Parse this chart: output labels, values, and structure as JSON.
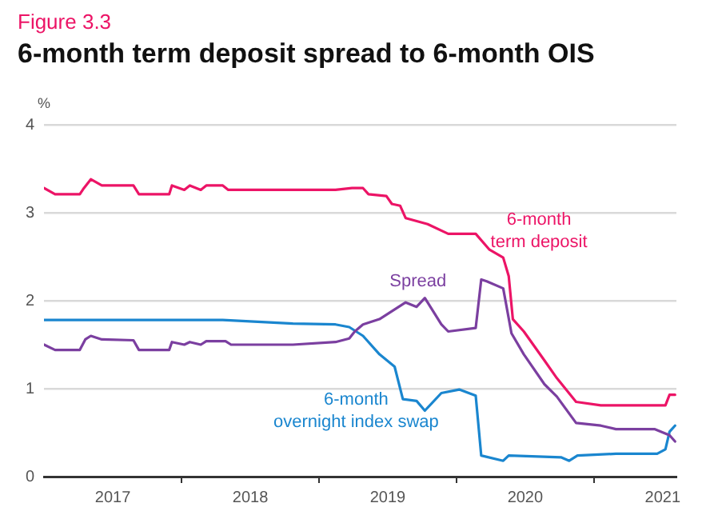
{
  "chart_data": {
    "type": "line",
    "subtitle": "Figure 3.3",
    "title": "6-month term deposit spread to 6-month OIS",
    "ylabel": "%",
    "xlim": [
      2017,
      2021.6
    ],
    "xticks": [
      {
        "value": 2017.5,
        "label": "2017"
      },
      {
        "value": 2018,
        "label": null
      },
      {
        "value": 2018.5,
        "label": "2018"
      },
      {
        "value": 2019,
        "label": null
      },
      {
        "value": 2019.5,
        "label": "2019"
      },
      {
        "value": 2020,
        "label": null
      },
      {
        "value": 2020.5,
        "label": "2020"
      },
      {
        "value": 2021,
        "label": null
      },
      {
        "value": 2021.5,
        "label": "2021"
      }
    ],
    "ylim": [
      0,
      4
    ],
    "yticks": [
      0,
      1,
      2,
      3,
      4
    ],
    "grid": "y",
    "legend": false,
    "marker": "none",
    "line_style": "solid",
    "series": [
      {
        "name": "6-month term deposit",
        "color": "#ec1466",
        "x": [
          2017.0,
          2017.08,
          2017.26,
          2017.29,
          2017.34,
          2017.42,
          2017.65,
          2017.69,
          2017.91,
          2017.93,
          2018.02,
          2018.06,
          2018.14,
          2018.18,
          2018.3,
          2018.34,
          2019.12,
          2019.24,
          2019.32,
          2019.36,
          2019.49,
          2019.53,
          2019.59,
          2019.63,
          2019.79,
          2019.94,
          2020.14,
          2020.24,
          2020.34,
          2020.38,
          2020.41,
          2020.49,
          2020.64,
          2020.73,
          2020.87,
          2021.05,
          2021.52,
          2021.55,
          2021.59
        ],
        "values": [
          3.28,
          3.21,
          3.21,
          3.28,
          3.38,
          3.31,
          3.31,
          3.21,
          3.21,
          3.31,
          3.26,
          3.31,
          3.26,
          3.31,
          3.31,
          3.26,
          3.26,
          3.28,
          3.28,
          3.21,
          3.19,
          3.1,
          3.08,
          2.94,
          2.87,
          2.76,
          2.76,
          2.58,
          2.49,
          2.28,
          1.79,
          1.65,
          1.32,
          1.12,
          0.85,
          0.81,
          0.81,
          0.93,
          0.93
        ]
      },
      {
        "name": "Spread",
        "color": "#7b3fa0",
        "x": [
          2017.0,
          2017.08,
          2017.26,
          2017.3,
          2017.34,
          2017.42,
          2017.65,
          2017.69,
          2017.91,
          2017.93,
          2018.02,
          2018.06,
          2018.14,
          2018.18,
          2018.32,
          2018.36,
          2018.81,
          2019.12,
          2019.22,
          2019.26,
          2019.32,
          2019.44,
          2019.51,
          2019.63,
          2019.71,
          2019.77,
          2019.89,
          2019.94,
          2020.14,
          2020.18,
          2020.22,
          2020.34,
          2020.4,
          2020.49,
          2020.64,
          2020.73,
          2020.87,
          2021.05,
          2021.16,
          2021.44,
          2021.55,
          2021.59
        ],
        "values": [
          1.5,
          1.44,
          1.44,
          1.56,
          1.6,
          1.56,
          1.55,
          1.44,
          1.44,
          1.53,
          1.5,
          1.53,
          1.5,
          1.54,
          1.54,
          1.5,
          1.5,
          1.53,
          1.57,
          1.65,
          1.73,
          1.79,
          1.86,
          1.98,
          1.93,
          2.03,
          1.73,
          1.65,
          1.69,
          2.24,
          2.22,
          2.14,
          1.63,
          1.39,
          1.05,
          0.91,
          0.61,
          0.58,
          0.54,
          0.54,
          0.47,
          0.4
        ]
      },
      {
        "name": "6-month overnight index swap",
        "color": "#1a86cf",
        "x": [
          2017.0,
          2018.3,
          2018.81,
          2019.12,
          2019.22,
          2019.32,
          2019.44,
          2019.55,
          2019.61,
          2019.71,
          2019.77,
          2019.89,
          2020.02,
          2020.14,
          2020.18,
          2020.34,
          2020.38,
          2020.76,
          2020.82,
          2020.88,
          2021.16,
          2021.46,
          2021.52,
          2021.55,
          2021.59
        ],
        "values": [
          1.78,
          1.78,
          1.74,
          1.73,
          1.7,
          1.6,
          1.39,
          1.25,
          0.88,
          0.86,
          0.75,
          0.95,
          0.99,
          0.92,
          0.24,
          0.18,
          0.24,
          0.22,
          0.18,
          0.24,
          0.26,
          0.26,
          0.31,
          0.51,
          0.58
        ]
      }
    ]
  }
}
